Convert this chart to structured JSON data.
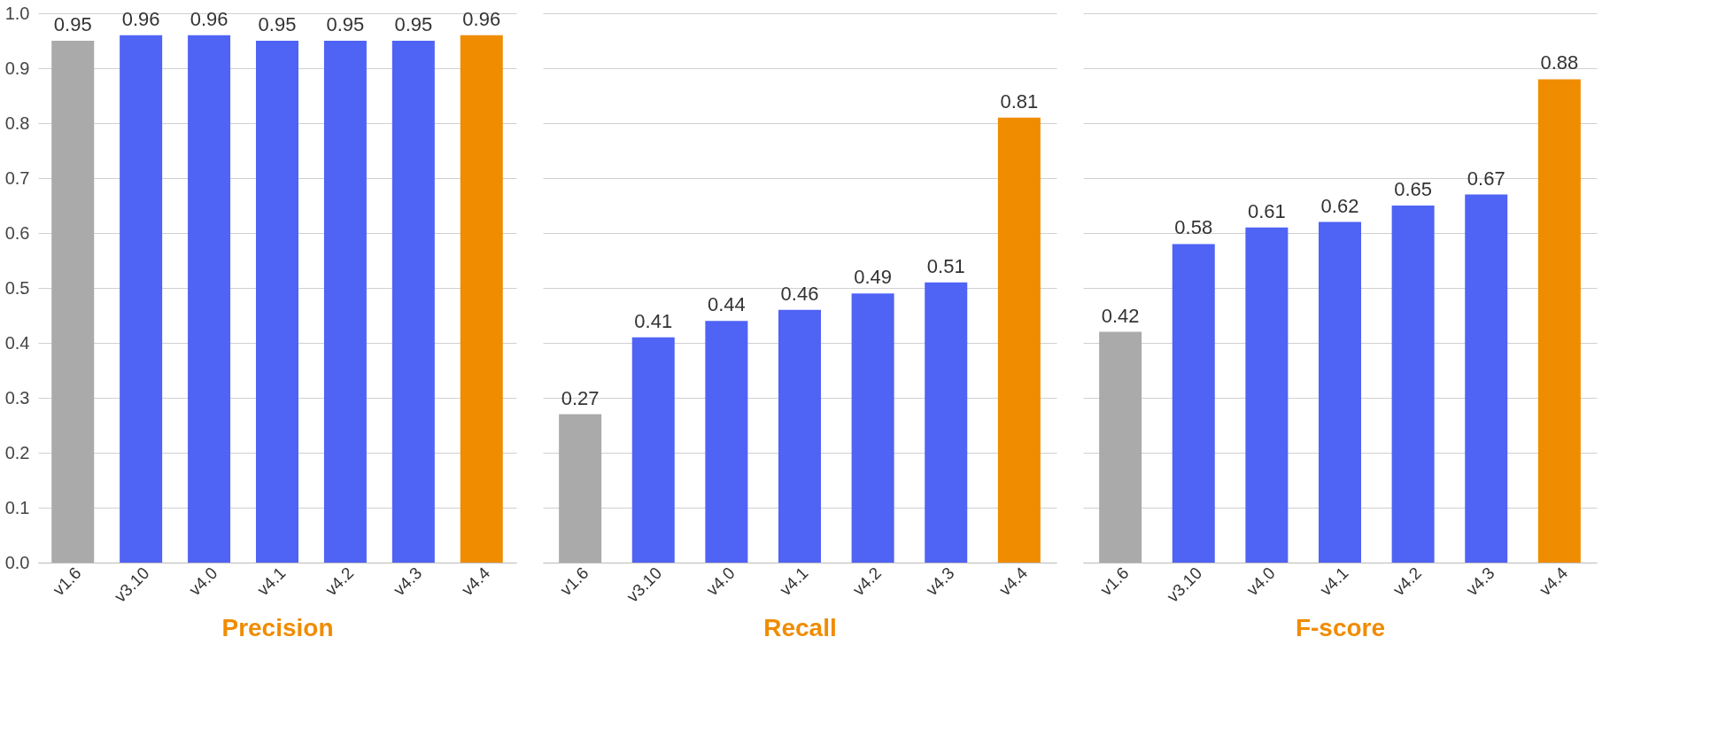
{
  "chart_data": [
    {
      "type": "bar",
      "xlabel": "Precision",
      "categories": [
        "v1.6",
        "v3.10",
        "v4.0",
        "v4.1",
        "v4.2",
        "v4.3",
        "v4.4"
      ],
      "values": [
        0.95,
        0.96,
        0.96,
        0.95,
        0.95,
        0.95,
        0.96
      ],
      "colors": [
        "#aaaaaa",
        "#4f63f5",
        "#4f63f5",
        "#4f63f5",
        "#4f63f5",
        "#4f63f5",
        "#f08c00"
      ],
      "ylim": [
        0,
        1
      ],
      "yticks": [
        {
          "value": 0,
          "label": "0.0"
        },
        0.1,
        0.2,
        0.3,
        0.4,
        0.5,
        0.6,
        0.7,
        0.8,
        0.9,
        {
          "value": 1,
          "label": "1.0"
        }
      ],
      "grid": "y",
      "data_labels": true
    },
    {
      "type": "bar",
      "xlabel": "Recall",
      "categories": [
        "v1.6",
        "v3.10",
        "v4.0",
        "v4.1",
        "v4.2",
        "v4.3",
        "v4.4"
      ],
      "values": [
        0.27,
        0.41,
        0.44,
        0.46,
        0.49,
        0.51,
        0.81
      ],
      "colors": [
        "#aaaaaa",
        "#4f63f5",
        "#4f63f5",
        "#4f63f5",
        "#4f63f5",
        "#4f63f5",
        "#f08c00"
      ],
      "ylim": [
        0,
        1
      ],
      "yticks": [
        0,
        0.1,
        0.2,
        0.3,
        0.4,
        0.5,
        0.6,
        0.7,
        0.8,
        0.9,
        1
      ],
      "grid": "y",
      "data_labels": true,
      "tick_labels": "x"
    },
    {
      "type": "bar",
      "xlabel": "F-score",
      "categories": [
        "v1.6",
        "v3.10",
        "v4.0",
        "v4.1",
        "v4.2",
        "v4.3",
        "v4.4"
      ],
      "values": [
        0.42,
        0.58,
        0.61,
        0.62,
        0.65,
        0.67,
        0.88
      ],
      "colors": [
        "#aaaaaa",
        "#4f63f5",
        "#4f63f5",
        "#4f63f5",
        "#4f63f5",
        "#4f63f5",
        "#f08c00"
      ],
      "ylim": [
        0,
        1
      ],
      "yticks": [
        0,
        0.1,
        0.2,
        0.3,
        0.4,
        0.5,
        0.6,
        0.7,
        0.8,
        0.9,
        1
      ],
      "grid": "y",
      "data_labels": true,
      "tick_labels": "x"
    }
  ]
}
